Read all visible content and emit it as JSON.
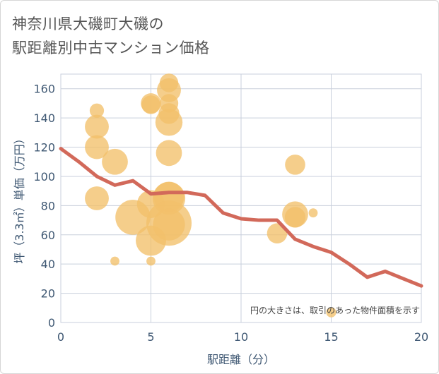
{
  "title_line1": "神奈川県大磯町大磯の",
  "title_line2": "駅距離別中古マンション価格",
  "chart_data": {
    "type": "scatter",
    "xlabel": "駅距離（分）",
    "ylabel": "坪（3.3㎡）単価（万円）",
    "xlim": [
      0,
      20
    ],
    "ylim": [
      0,
      170
    ],
    "xticks": [
      0,
      5,
      10,
      15,
      20
    ],
    "yticks": [
      0,
      20,
      40,
      60,
      80,
      100,
      120,
      140,
      160
    ],
    "annotation": "円の大きさは、取引のあった物件面積を示す",
    "colors": {
      "bubble": "#f2c06a",
      "line": "#d2695a",
      "grid": "#c8cfdc",
      "axis_text": "#3f5873"
    },
    "bubbles": [
      {
        "x": 2,
        "y": 145,
        "size": 0.1
      },
      {
        "x": 2,
        "y": 134,
        "size": 0.28
      },
      {
        "x": 2,
        "y": 120,
        "size": 0.28
      },
      {
        "x": 2,
        "y": 85,
        "size": 0.28
      },
      {
        "x": 3,
        "y": 110,
        "size": 0.33
      },
      {
        "x": 3,
        "y": 42,
        "size": 0.04
      },
      {
        "x": 4,
        "y": 72,
        "size": 0.6
      },
      {
        "x": 5,
        "y": 150,
        "size": 0.2
      },
      {
        "x": 5,
        "y": 149,
        "size": 0.17
      },
      {
        "x": 5,
        "y": 81,
        "size": 0.38
      },
      {
        "x": 5,
        "y": 56,
        "size": 0.45
      },
      {
        "x": 5,
        "y": 42,
        "size": 0.04
      },
      {
        "x": 6,
        "y": 164,
        "size": 0.17
      },
      {
        "x": 6,
        "y": 159,
        "size": 0.28
      },
      {
        "x": 6,
        "y": 150,
        "size": 0.17
      },
      {
        "x": 6,
        "y": 143,
        "size": 0.21
      },
      {
        "x": 6,
        "y": 137,
        "size": 0.36
      },
      {
        "x": 6,
        "y": 116,
        "size": 0.33
      },
      {
        "x": 6,
        "y": 86,
        "size": 0.45
      },
      {
        "x": 6,
        "y": 85,
        "size": 0.52
      },
      {
        "x": 6,
        "y": 68,
        "size": 1.0
      },
      {
        "x": 6,
        "y": 67,
        "size": 0.5
      },
      {
        "x": 12,
        "y": 61,
        "size": 0.2
      },
      {
        "x": 13,
        "y": 108,
        "size": 0.2
      },
      {
        "x": 13,
        "y": 74,
        "size": 0.33
      },
      {
        "x": 13,
        "y": 72,
        "size": 0.21
      },
      {
        "x": 14,
        "y": 75,
        "size": 0.04
      },
      {
        "x": 15,
        "y": 7,
        "size": 0.05
      }
    ],
    "trend": {
      "x": [
        0,
        1,
        2,
        3,
        4,
        5,
        6,
        7,
        8,
        9,
        10,
        11,
        12,
        13,
        14,
        15,
        16,
        17,
        18,
        19,
        20
      ],
      "y": [
        119,
        110,
        100,
        94,
        97,
        88,
        89,
        89,
        87,
        75,
        71,
        70,
        70,
        57,
        52,
        48,
        40,
        31,
        35,
        30,
        25
      ]
    }
  }
}
